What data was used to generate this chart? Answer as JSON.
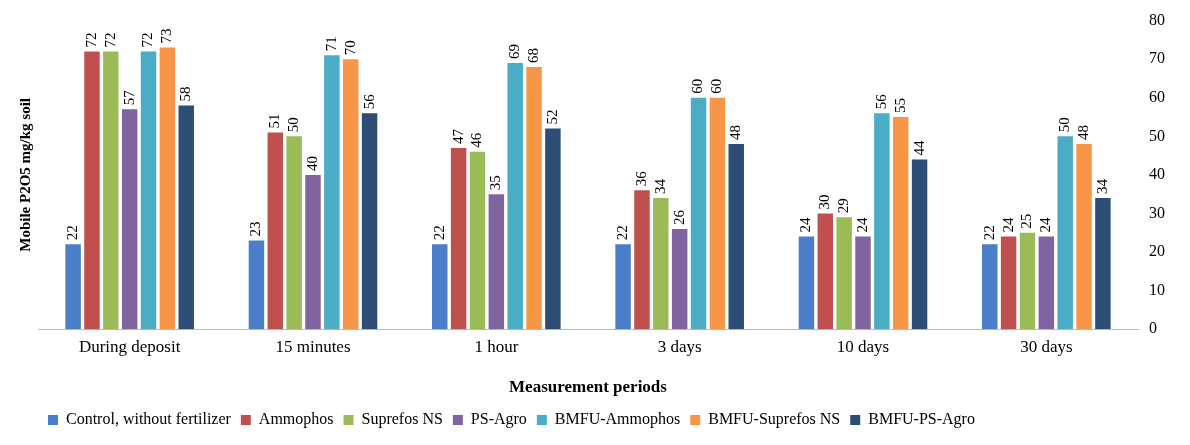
{
  "chart_data": {
    "type": "bar",
    "xlabel": "Measurement periods",
    "ylabel": "Mobile P2O5 mg/kg soil",
    "categories": [
      "During deposit",
      "15 minutes",
      "1 hour",
      "3 days",
      "10 days",
      "30 days"
    ],
    "series": [
      {
        "name": "Control, without fertilizer",
        "color": "#4a7ec8",
        "values": [
          22,
          23,
          22,
          22,
          24,
          22
        ]
      },
      {
        "name": "Ammophos",
        "color": "#c0504d",
        "values": [
          72,
          51,
          47,
          36,
          30,
          24
        ]
      },
      {
        "name": "Suprefos NS",
        "color": "#9bbb59",
        "values": [
          72,
          50,
          46,
          34,
          29,
          25
        ]
      },
      {
        "name": "PS-Agro",
        "color": "#8064a2",
        "values": [
          57,
          40,
          35,
          26,
          24,
          24
        ]
      },
      {
        "name": "BMFU-Ammophos",
        "color": "#4bacc6",
        "values": [
          72,
          71,
          69,
          60,
          56,
          50
        ]
      },
      {
        "name": "BMFU-Suprefos NS",
        "color": "#f79646",
        "values": [
          73,
          70,
          68,
          60,
          55,
          48
        ]
      },
      {
        "name": "BMFU-PS-Agro",
        "color": "#2c4d75",
        "values": [
          58,
          56,
          52,
          48,
          44,
          34
        ]
      }
    ],
    "ylim": [
      0,
      80
    ],
    "yticks": [
      0,
      10,
      20,
      30,
      40,
      50,
      60,
      70,
      80
    ],
    "grid": false,
    "legend": "bottom",
    "data_labels": true
  }
}
